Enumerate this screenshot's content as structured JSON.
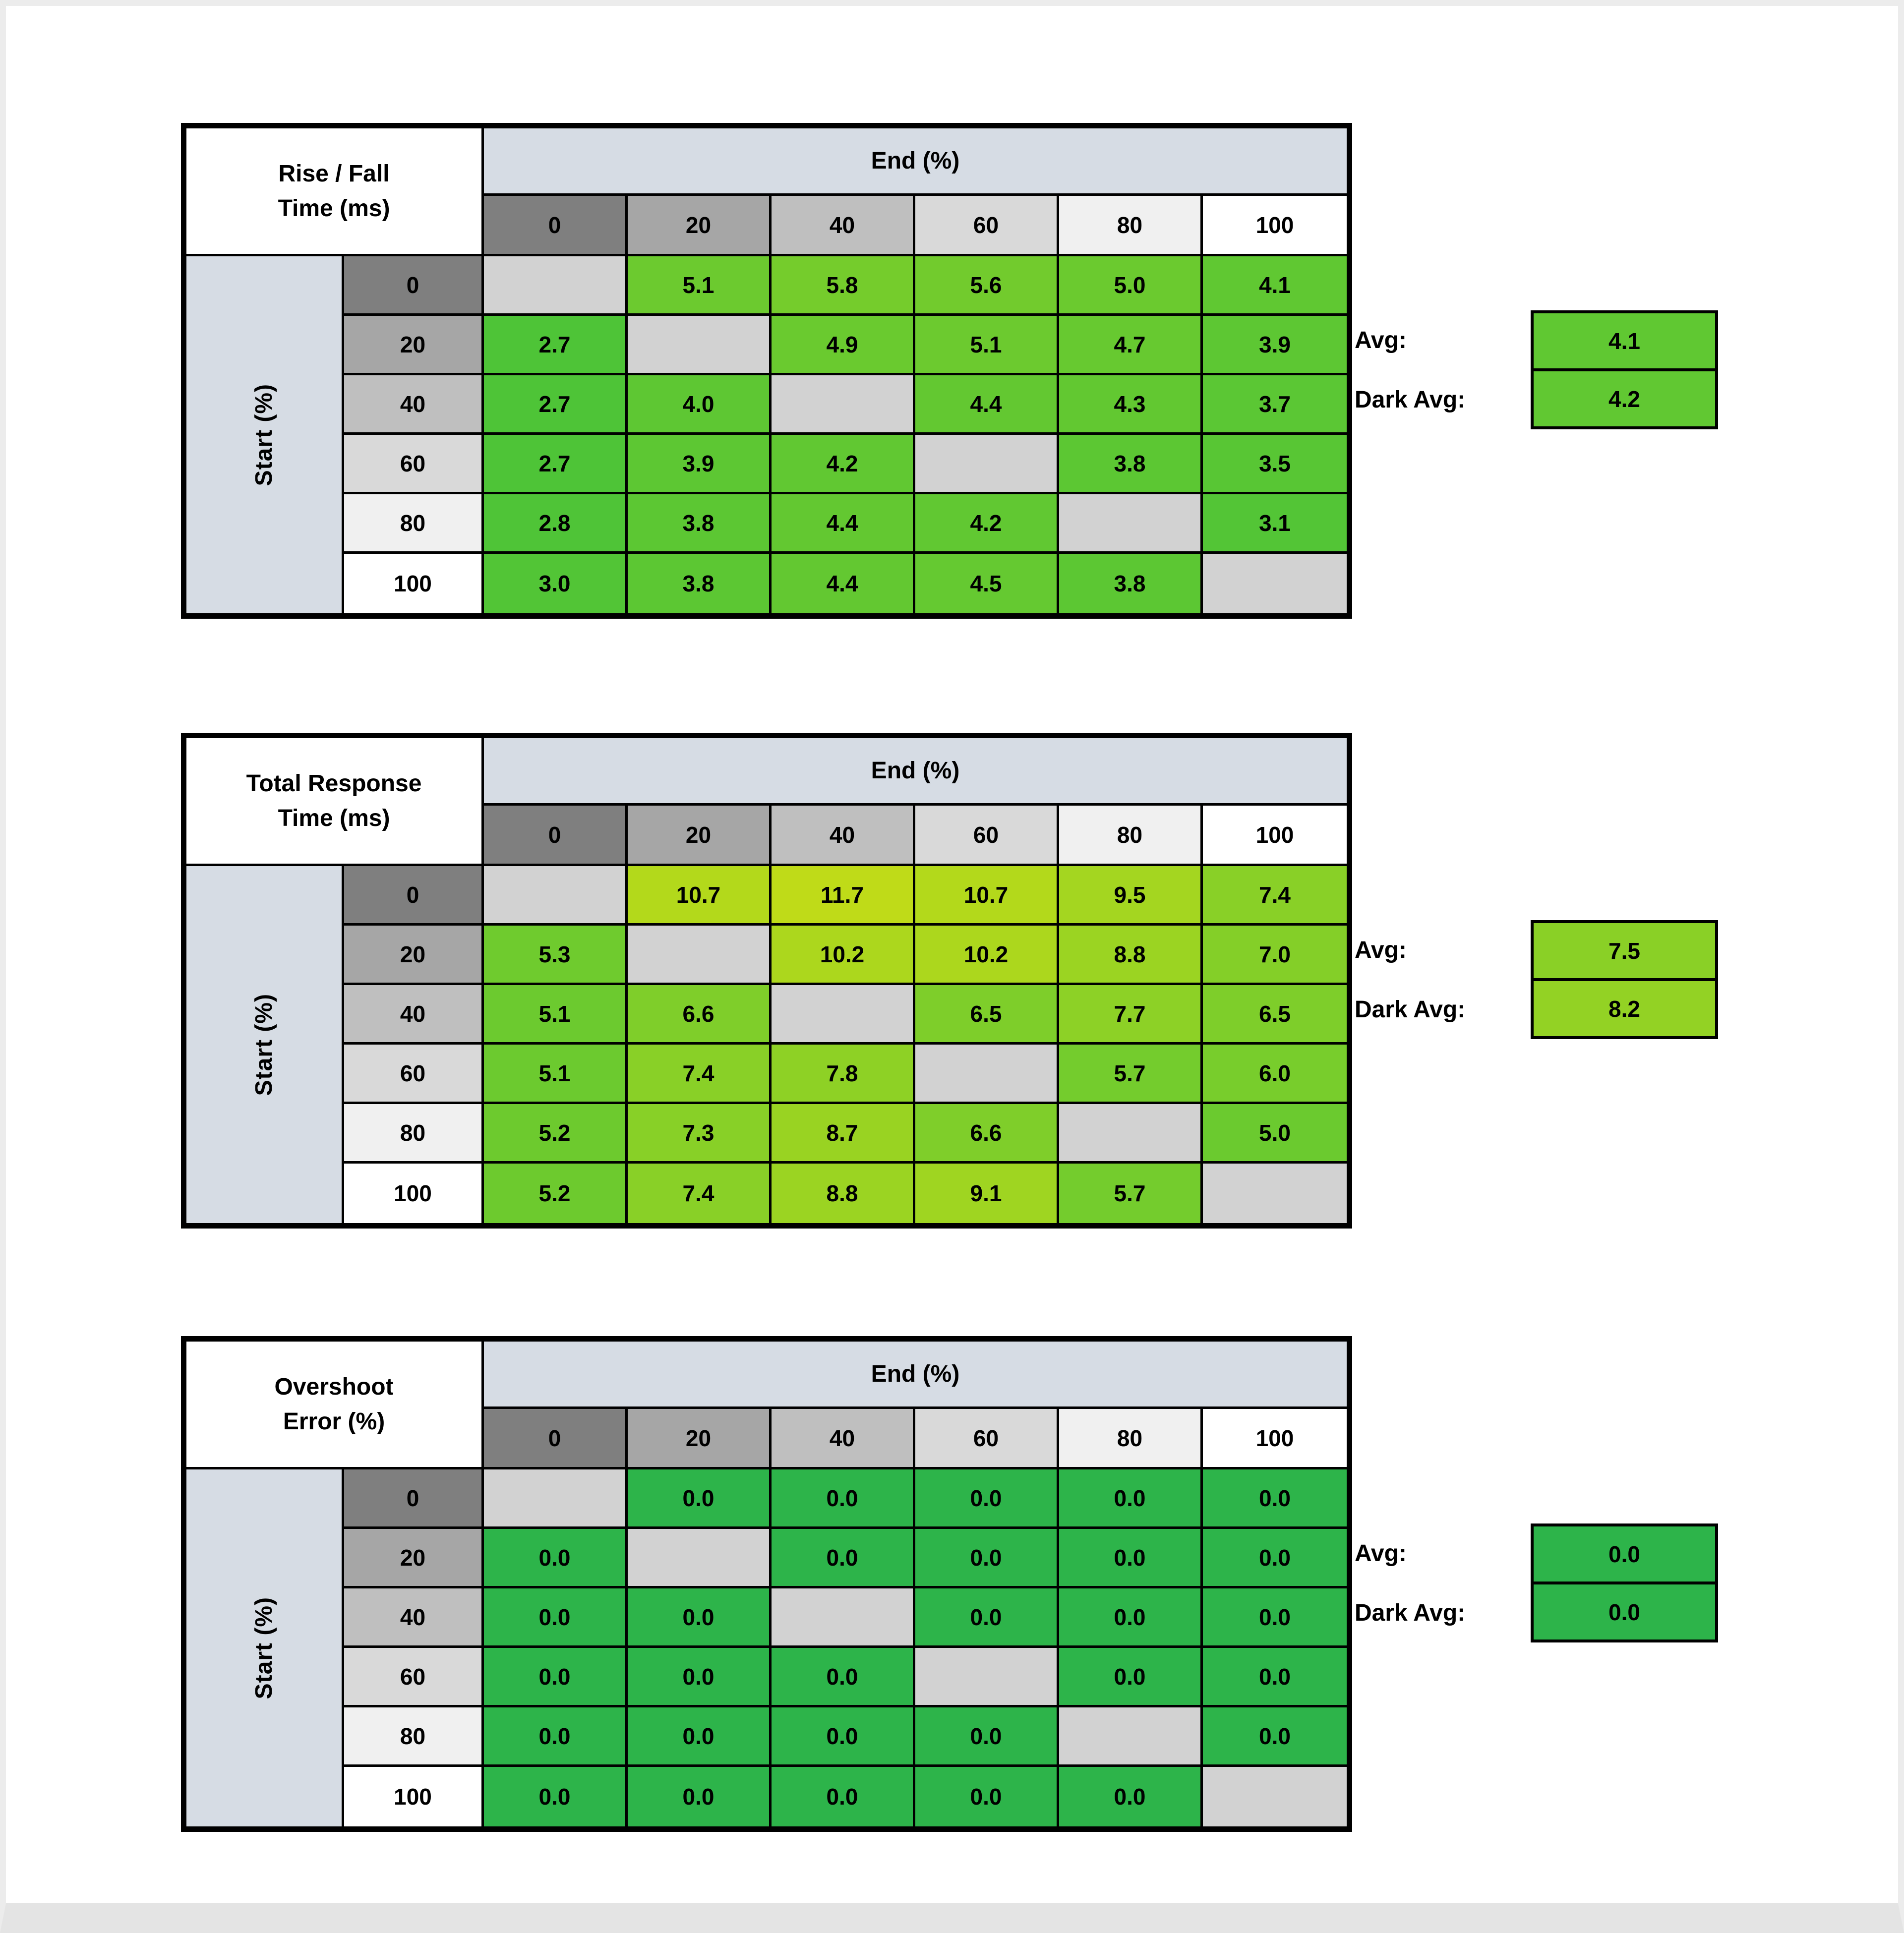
{
  "palette": {
    "band": "#d6dce4",
    "diagonal": "#d2d2d2",
    "header_grays": [
      "#7f7f7f",
      "#a6a6a6",
      "#bfbfbf",
      "#d9d9d9",
      "#f0f0f0",
      "#ffffff"
    ],
    "time_scale": {
      "low_value": 2.7,
      "high_value": 12.0,
      "low_color": "#4ec437",
      "high_color": "#c3dc17"
    },
    "overshoot_color": "#2db44a",
    "grid_line": "#000000"
  },
  "chart_data": [
    {
      "type": "heatmap",
      "title_line1": "Rise / Fall",
      "title_line2": "Time (ms)",
      "column_group_label": "End (%)",
      "row_group_label": "Start (%)",
      "columns": [
        "0",
        "20",
        "40",
        "60",
        "80",
        "100"
      ],
      "rows": [
        "0",
        "20",
        "40",
        "60",
        "80",
        "100"
      ],
      "values": [
        [
          null,
          5.1,
          5.8,
          5.6,
          5.0,
          4.1
        ],
        [
          2.7,
          null,
          4.9,
          5.1,
          4.7,
          3.9
        ],
        [
          2.7,
          4.0,
          null,
          4.4,
          4.3,
          3.7
        ],
        [
          2.7,
          3.9,
          4.2,
          null,
          3.8,
          3.5
        ],
        [
          2.8,
          3.8,
          4.4,
          4.2,
          null,
          3.1
        ],
        [
          3.0,
          3.8,
          4.4,
          4.5,
          3.8,
          null
        ]
      ],
      "avg_label": "Avg:",
      "avg": 4.1,
      "dark_avg_label": "Dark Avg:",
      "dark_avg": 4.2,
      "color_mode": "time"
    },
    {
      "type": "heatmap",
      "title_line1": "Total Response",
      "title_line2": "Time (ms)",
      "column_group_label": "End (%)",
      "row_group_label": "Start (%)",
      "columns": [
        "0",
        "20",
        "40",
        "60",
        "80",
        "100"
      ],
      "rows": [
        "0",
        "20",
        "40",
        "60",
        "80",
        "100"
      ],
      "values": [
        [
          null,
          10.7,
          11.7,
          10.7,
          9.5,
          7.4
        ],
        [
          5.3,
          null,
          10.2,
          10.2,
          8.8,
          7.0
        ],
        [
          5.1,
          6.6,
          null,
          6.5,
          7.7,
          6.5
        ],
        [
          5.1,
          7.4,
          7.8,
          null,
          5.7,
          6.0
        ],
        [
          5.2,
          7.3,
          8.7,
          6.6,
          null,
          5.0
        ],
        [
          5.2,
          7.4,
          8.8,
          9.1,
          5.7,
          null
        ]
      ],
      "avg_label": "Avg:",
      "avg": 7.5,
      "dark_avg_label": "Dark Avg:",
      "dark_avg": 8.2,
      "color_mode": "time"
    },
    {
      "type": "heatmap",
      "title_line1": "Overshoot",
      "title_line2": "Error (%)",
      "column_group_label": "End (%)",
      "row_group_label": "Start (%)",
      "columns": [
        "0",
        "20",
        "40",
        "60",
        "80",
        "100"
      ],
      "rows": [
        "0",
        "20",
        "40",
        "60",
        "80",
        "100"
      ],
      "values": [
        [
          null,
          0.0,
          0.0,
          0.0,
          0.0,
          0.0
        ],
        [
          0.0,
          null,
          0.0,
          0.0,
          0.0,
          0.0
        ],
        [
          0.0,
          0.0,
          null,
          0.0,
          0.0,
          0.0
        ],
        [
          0.0,
          0.0,
          0.0,
          null,
          0.0,
          0.0
        ],
        [
          0.0,
          0.0,
          0.0,
          0.0,
          null,
          0.0
        ],
        [
          0.0,
          0.0,
          0.0,
          0.0,
          0.0,
          null
        ]
      ],
      "avg_label": "Avg:",
      "avg": 0.0,
      "dark_avg_label": "Dark Avg:",
      "dark_avg": 0.0,
      "color_mode": "overshoot"
    }
  ]
}
